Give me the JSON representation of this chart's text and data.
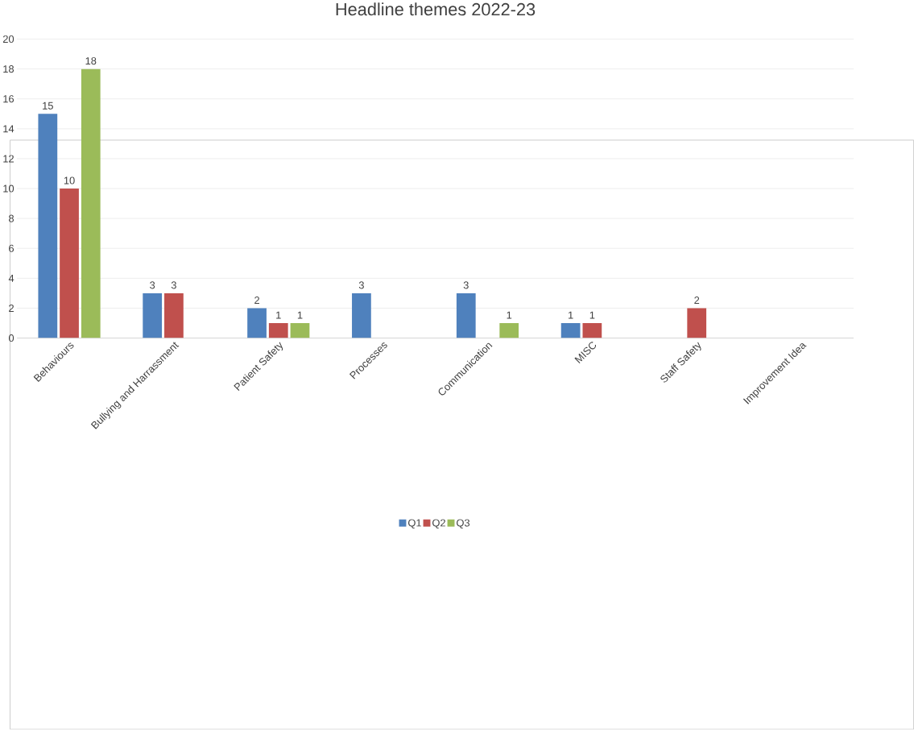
{
  "chart_data": {
    "type": "bar",
    "title": "Headline themes  2022-23",
    "categories": [
      "Behaviours",
      "Bullying and Harrassment",
      "Patient Safety",
      "Processes",
      "Communication",
      "MISC",
      "Staff Safety",
      "Improvement Idea"
    ],
    "series": [
      {
        "name": "Q1",
        "color": "#4f81bd",
        "values": [
          15,
          3,
          2,
          3,
          3,
          1,
          null,
          null
        ]
      },
      {
        "name": "Q2",
        "color": "#c0504d",
        "values": [
          10,
          3,
          1,
          null,
          null,
          1,
          2,
          null
        ]
      },
      {
        "name": "Q3",
        "color": "#9bbb59",
        "values": [
          18,
          null,
          1,
          null,
          1,
          null,
          null,
          null
        ]
      }
    ],
    "ylim": [
      0,
      20
    ],
    "yticks": [
      0,
      2,
      4,
      6,
      8,
      10,
      12,
      14,
      16,
      18,
      20
    ],
    "grid": "y",
    "legend": "bottom",
    "data_labels": true
  }
}
